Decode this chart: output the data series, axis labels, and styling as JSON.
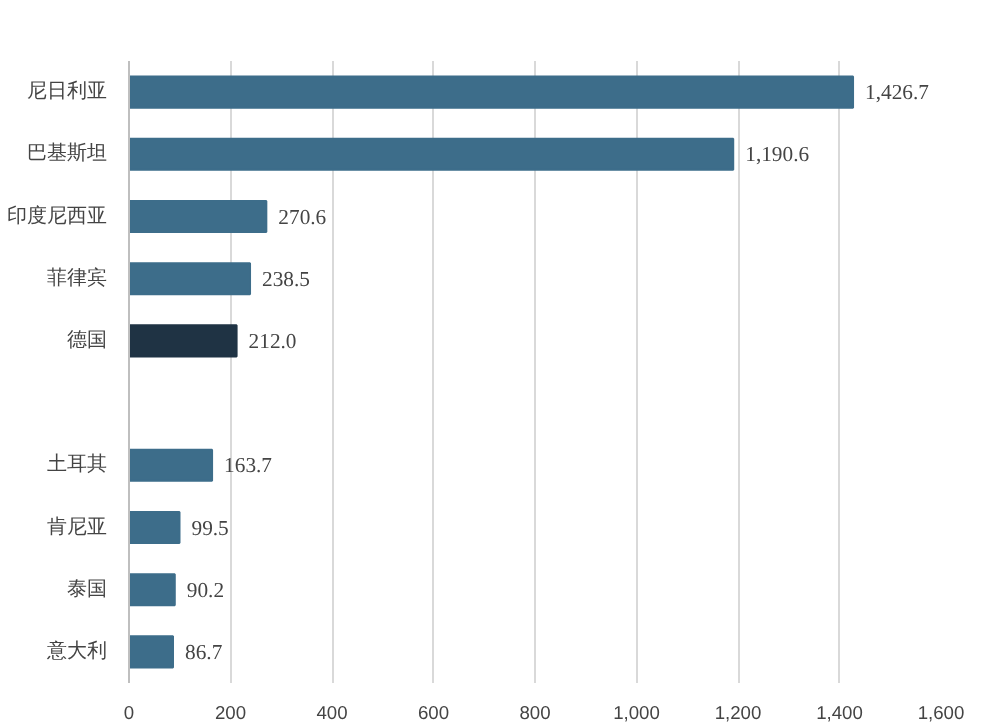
{
  "chart_data": {
    "type": "bar",
    "orientation": "horizontal",
    "categories": [
      "尼日利亚",
      "巴基斯坦",
      "印度尼西亚",
      "菲律宾",
      "德国",
      null,
      "土耳其",
      "肯尼亚",
      "泰国",
      "意大利"
    ],
    "values": [
      1426.7,
      1190.6,
      270.6,
      238.5,
      212.0,
      null,
      163.7,
      99.5,
      90.2,
      86.7
    ],
    "value_labels": [
      "1,426.7",
      "1,190.6",
      "270.6",
      "238.5",
      "212.0",
      null,
      "163.7",
      "99.5",
      "90.2",
      "86.7"
    ],
    "colors": [
      "#3d6d8a",
      "#3d6d8a",
      "#3d6d8a",
      "#3d6d8a",
      "#1f3344",
      "#3d6d8a",
      "#3d6d8a",
      "#3d6d8a",
      "#3d6d8a",
      "#3d6d8a"
    ],
    "xlim": [
      0,
      1600
    ],
    "xticks": [
      0,
      200,
      400,
      600,
      800,
      {
        "value": 1000,
        "label": "1,000"
      },
      {
        "value": 1200,
        "label": "1,200"
      },
      {
        "value": 1400,
        "label": "1,400"
      },
      {
        "value": 1600,
        "label": "1,600"
      }
    ],
    "grid": "x"
  }
}
